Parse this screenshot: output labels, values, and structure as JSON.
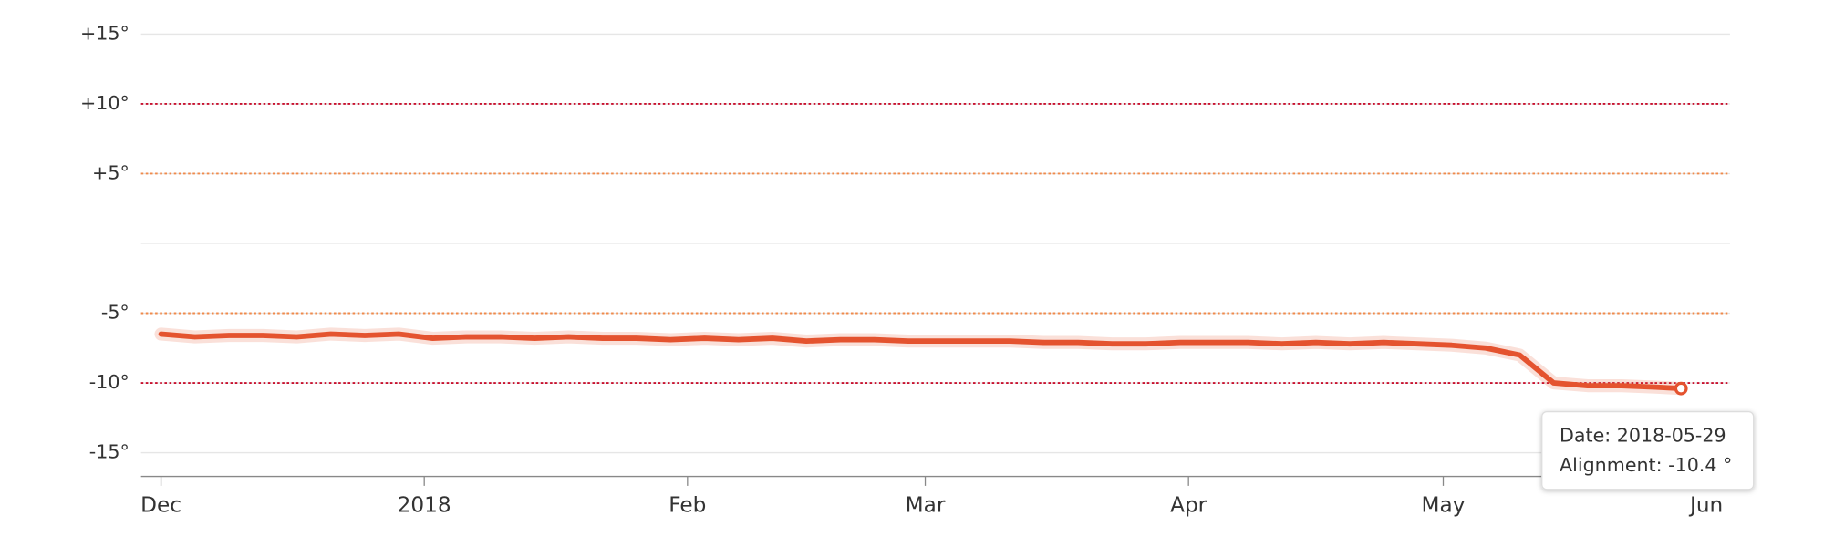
{
  "chart_data": {
    "type": "line",
    "x": [
      "2017-12-01",
      "2017-12-05",
      "2017-12-09",
      "2017-12-13",
      "2017-12-17",
      "2017-12-21",
      "2017-12-25",
      "2017-12-29",
      "2018-01-02",
      "2018-01-06",
      "2018-01-10",
      "2018-01-14",
      "2018-01-18",
      "2018-01-22",
      "2018-01-26",
      "2018-01-30",
      "2018-02-03",
      "2018-02-07",
      "2018-02-11",
      "2018-02-15",
      "2018-02-19",
      "2018-02-23",
      "2018-02-27",
      "2018-03-03",
      "2018-03-07",
      "2018-03-11",
      "2018-03-15",
      "2018-03-19",
      "2018-03-23",
      "2018-03-27",
      "2018-03-31",
      "2018-04-04",
      "2018-04-08",
      "2018-04-12",
      "2018-04-16",
      "2018-04-20",
      "2018-04-24",
      "2018-04-28",
      "2018-05-02",
      "2018-05-06",
      "2018-05-10",
      "2018-05-14",
      "2018-05-18",
      "2018-05-22",
      "2018-05-26",
      "2018-05-29"
    ],
    "values": [
      -6.5,
      -6.7,
      -6.6,
      -6.6,
      -6.7,
      -6.5,
      -6.6,
      -6.5,
      -6.8,
      -6.7,
      -6.7,
      -6.8,
      -6.7,
      -6.8,
      -6.8,
      -6.9,
      -6.8,
      -6.9,
      -6.8,
      -7.0,
      -6.9,
      -6.9,
      -7.0,
      -7.0,
      -7.0,
      -7.0,
      -7.1,
      -7.1,
      -7.2,
      -7.2,
      -7.1,
      -7.1,
      -7.1,
      -7.2,
      -7.1,
      -7.2,
      -7.1,
      -7.2,
      -7.3,
      -7.5,
      -8.0,
      -10.0,
      -10.2,
      -10.2,
      -10.3,
      -10.4
    ],
    "color": "#e4532f",
    "xlim": [
      "2017-12-01",
      "2018-06-01"
    ],
    "xticks": [
      {
        "value": "2017-12-01",
        "label": "Dec"
      },
      {
        "value": "2018-01-01",
        "label": "2018"
      },
      {
        "value": "2018-02-01",
        "label": "Feb"
      },
      {
        "value": "2018-03-01",
        "label": "Mar"
      },
      {
        "value": "2018-04-01",
        "label": "Apr"
      },
      {
        "value": "2018-05-01",
        "label": "May"
      },
      {
        "value": "2018-06-01",
        "label": "Jun"
      }
    ],
    "ylim": [
      -16.7,
      15
    ],
    "yticks": [
      {
        "value": 15,
        "label": "+15°"
      },
      {
        "value": 10,
        "label": "+10°"
      },
      {
        "value": 5,
        "label": "+5°"
      },
      {
        "value": -5,
        "label": "-5°"
      },
      {
        "value": -10,
        "label": "-10°"
      },
      {
        "value": -15,
        "label": "-15°"
      }
    ],
    "threshold_lines": [
      {
        "value": 10,
        "color": "#c8102e"
      },
      {
        "value": 5,
        "color": "#f08a4b"
      },
      {
        "value": -5,
        "color": "#f08a4b"
      },
      {
        "value": -10,
        "color": "#c8102e"
      }
    ],
    "grid": true,
    "tooltip": [
      "Date: 2018-05-29",
      "Alignment: -10.4 °"
    ]
  }
}
